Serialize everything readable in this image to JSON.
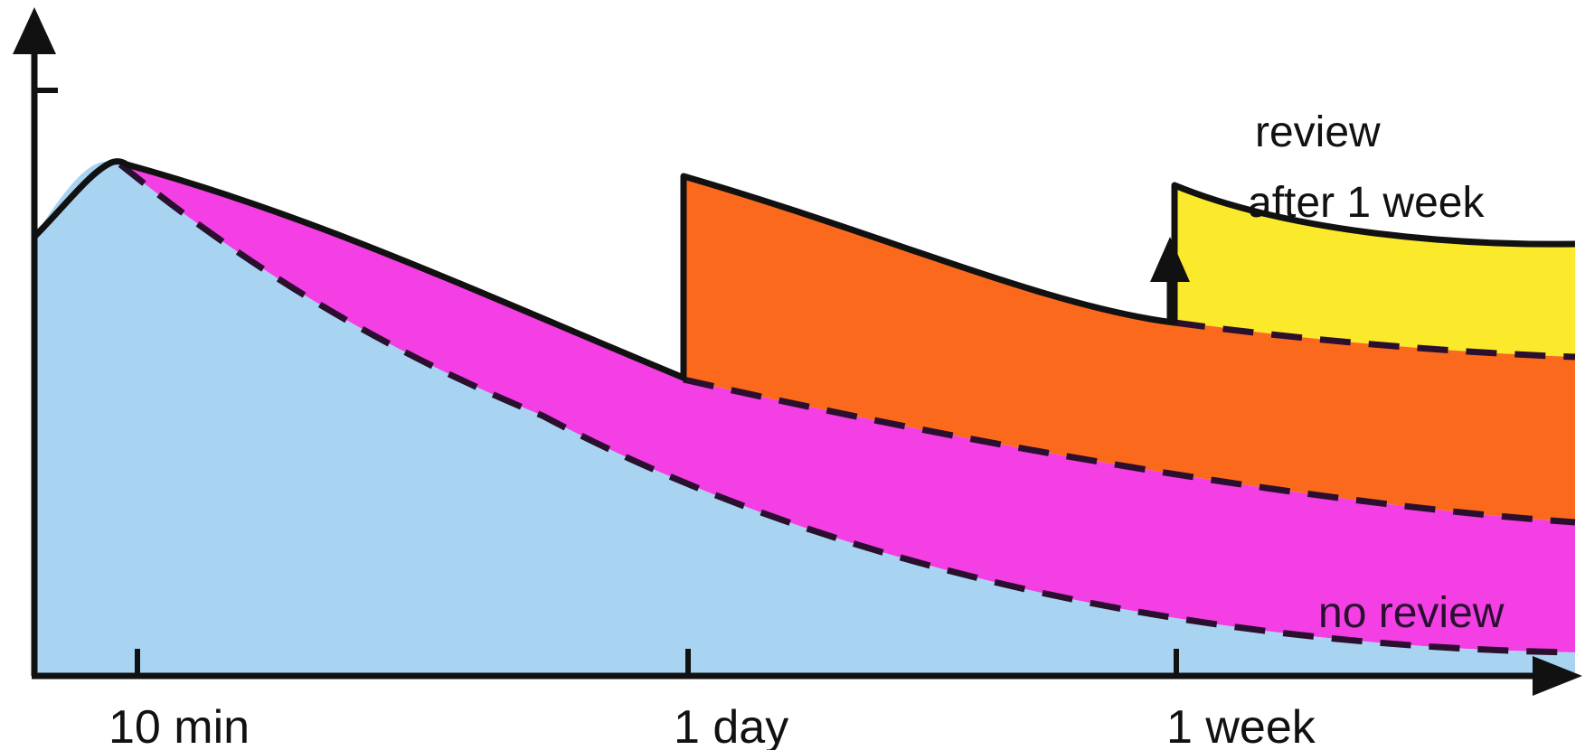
{
  "diagram": {
    "x_ticks": [
      "10 min",
      "1 day",
      "1 week"
    ],
    "annotations": {
      "review_week_line1": "review",
      "review_week_line2": "after 1 week",
      "no_review": "no review"
    },
    "colors": {
      "no_review_region": "#a8d4f2",
      "review_10min_region": "#f33fe3",
      "review_1day_region": "#fb6a1c",
      "review_1week_region": "#fbe92c",
      "outline": "#111111",
      "dashed_curve": "#2b0f2e"
    }
  }
}
